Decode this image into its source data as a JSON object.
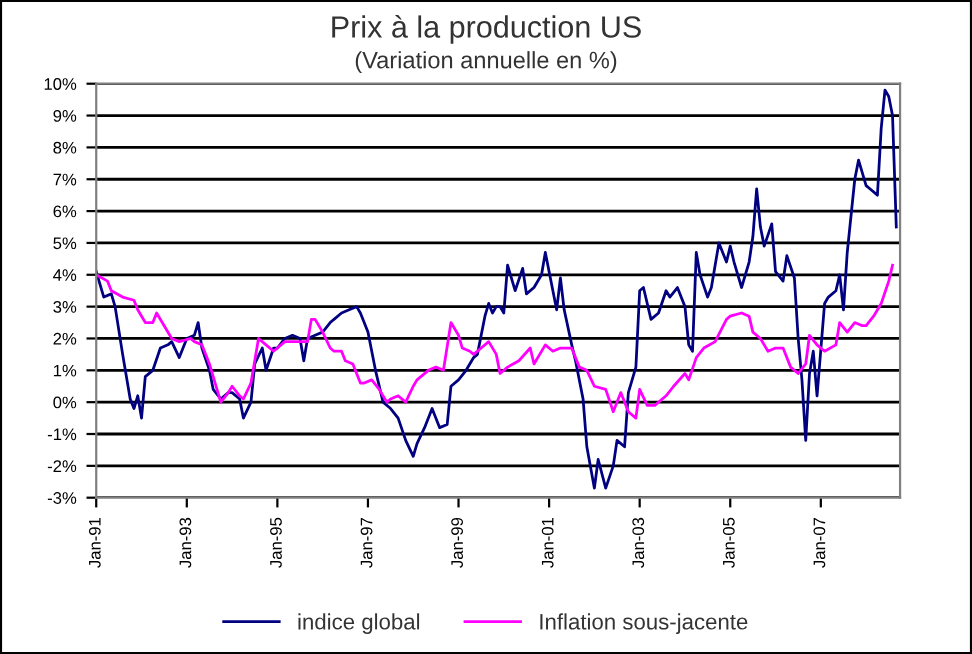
{
  "chart_data": {
    "type": "line",
    "title": "Prix à la production US",
    "subtitle": "(Variation annuelle en %)",
    "series": [
      {
        "name": "indice global",
        "color": "#000080",
        "x": [
          "1991-01",
          "1991-03",
          "1991-05",
          "1991-06",
          "1991-08",
          "1991-10",
          "1991-11",
          "1991-12",
          "1992-01",
          "1992-02",
          "1992-04",
          "1992-06",
          "1992-08",
          "1992-09",
          "1992-11",
          "1993-01",
          "1993-03",
          "1993-04",
          "1993-05",
          "1993-07",
          "1993-08",
          "1993-10",
          "1993-12",
          "1994-01",
          "1994-03",
          "1994-04",
          "1994-06",
          "1994-07",
          "1994-09",
          "1994-10",
          "1994-12",
          "1995-01",
          "1995-03",
          "1995-05",
          "1995-07",
          "1995-08",
          "1995-09",
          "1995-11",
          "1996-01",
          "1996-03",
          "1996-04",
          "1996-06",
          "1996-08",
          "1996-10",
          "1996-11",
          "1997-01",
          "1997-03",
          "1997-05",
          "1997-07",
          "1997-09",
          "1997-11",
          "1998-01",
          "1998-02",
          "1998-04",
          "1998-06",
          "1998-08",
          "1998-10",
          "1998-11",
          "1999-01",
          "1999-03",
          "1999-05",
          "1999-06",
          "1999-08",
          "1999-09",
          "1999-10",
          "1999-11",
          "1999-12",
          "2000-01",
          "2000-02",
          "2000-04",
          "2000-06",
          "2000-07",
          "2000-09",
          "2000-11",
          "2000-12",
          "2001-03",
          "2001-04",
          "2001-05",
          "2001-07",
          "2001-08",
          "2001-10",
          "2001-11",
          "2002-01",
          "2002-02",
          "2002-04",
          "2002-06",
          "2002-07",
          "2002-09",
          "2002-10",
          "2002-12",
          "2003-01",
          "2003-02",
          "2003-04",
          "2003-06",
          "2003-08",
          "2003-09",
          "2003-11",
          "2004-01",
          "2004-02",
          "2004-03",
          "2004-04",
          "2004-05",
          "2004-07",
          "2004-08",
          "2004-10",
          "2004-12",
          "2005-01",
          "2005-02",
          "2005-04",
          "2005-06",
          "2005-07",
          "2005-08",
          "2005-09",
          "2005-10",
          "2005-12",
          "2006-01",
          "2006-03",
          "2006-04",
          "2006-06",
          "2006-07",
          "2006-08",
          "2006-09",
          "2006-10",
          "2006-11",
          "2006-12",
          "2007-02",
          "2007-03",
          "2007-05",
          "2007-06",
          "2007-07",
          "2007-08",
          "2007-10",
          "2007-11",
          "2007-12",
          "2008-01",
          "2008-02",
          "2008-04",
          "2008-05",
          "2008-06",
          "2008-07",
          "2008-08",
          "2008-09"
        ],
        "values": [
          4.1,
          3.3,
          3.4,
          3.0,
          1.5,
          0.1,
          -0.2,
          0.2,
          -0.5,
          0.8,
          1.0,
          1.7,
          1.8,
          1.9,
          1.4,
          2.0,
          2.1,
          2.5,
          1.7,
          1.0,
          0.4,
          0.1,
          0.3,
          0.3,
          0.1,
          -0.5,
          0.0,
          1.2,
          1.7,
          1.0,
          1.7,
          1.7,
          2.0,
          2.1,
          2.0,
          1.3,
          2.0,
          2.1,
          2.2,
          2.5,
          2.6,
          2.8,
          2.9,
          3.0,
          2.8,
          2.2,
          1.0,
          0.0,
          -0.2,
          -0.5,
          -1.2,
          -1.7,
          -1.3,
          -0.8,
          -0.2,
          -0.8,
          -0.7,
          0.5,
          0.7,
          1.0,
          1.4,
          1.5,
          2.7,
          3.1,
          2.8,
          3.0,
          3.0,
          2.8,
          4.3,
          3.5,
          4.2,
          3.4,
          3.6,
          4.0,
          4.7,
          2.9,
          3.9,
          2.9,
          1.8,
          1.3,
          0.1,
          -1.4,
          -2.7,
          -1.8,
          -2.7,
          -2.0,
          -1.2,
          -1.4,
          0.3,
          1.1,
          3.5,
          3.6,
          2.6,
          2.8,
          3.5,
          3.3,
          3.6,
          3.0,
          1.8,
          1.6,
          4.7,
          4.0,
          3.3,
          3.6,
          5.0,
          4.4,
          4.9,
          4.4,
          3.6,
          4.4,
          5.2,
          6.7,
          5.5,
          4.9,
          5.6,
          4.1,
          3.8,
          4.6,
          3.9,
          2.0,
          0.7,
          -1.2,
          0.9,
          1.6,
          0.2,
          3.1,
          3.3,
          3.5,
          4.0,
          2.9,
          4.7,
          7.0,
          7.6,
          7.2,
          6.8,
          6.7,
          6.5,
          8.6,
          9.8,
          9.6,
          9.0,
          5.5
        ]
      },
      {
        "name": "Inflation sous-jacente",
        "color": "#ff00ff",
        "x": [
          "1991-01",
          "1991-04",
          "1991-05",
          "1991-08",
          "1991-11",
          "1991-12",
          "1992-02",
          "1992-04",
          "1992-05",
          "1992-07",
          "1992-09",
          "1992-11",
          "1993-02",
          "1993-03",
          "1993-05",
          "1993-07",
          "1993-09",
          "1993-10",
          "1993-12",
          "1994-01",
          "1994-03",
          "1994-04",
          "1994-06",
          "1994-08",
          "1994-10",
          "1994-12",
          "1995-01",
          "1995-03",
          "1995-05",
          "1995-07",
          "1995-09",
          "1995-10",
          "1995-11",
          "1996-01",
          "1996-03",
          "1996-04",
          "1996-06",
          "1996-07",
          "1996-09",
          "1996-11",
          "1996-12",
          "1997-02",
          "1997-04",
          "1997-06",
          "1997-07",
          "1997-09",
          "1997-11",
          "1998-01",
          "1998-02",
          "1998-05",
          "1998-07",
          "1998-09",
          "1998-11",
          "1999-01",
          "1999-02",
          "1999-04",
          "1999-05",
          "1999-07",
          "1999-09",
          "1999-11",
          "1999-12",
          "2000-02",
          "2000-05",
          "2000-08",
          "2000-09",
          "2000-12",
          "2001-02",
          "2001-04",
          "2001-07",
          "2001-09",
          "2001-11",
          "2002-01",
          "2002-04",
          "2002-06",
          "2002-08",
          "2002-10",
          "2002-12",
          "2003-01",
          "2003-03",
          "2003-05",
          "2003-08",
          "2003-10",
          "2004-01",
          "2004-02",
          "2004-04",
          "2004-06",
          "2004-09",
          "2004-12",
          "2005-01",
          "2005-04",
          "2005-06",
          "2005-07",
          "2005-09",
          "2005-11",
          "2006-01",
          "2006-03",
          "2006-05",
          "2006-07",
          "2006-09",
          "2006-10",
          "2006-12",
          "2007-02",
          "2007-05",
          "2007-06",
          "2007-08",
          "2007-10",
          "2007-12",
          "2008-01",
          "2008-03",
          "2008-05",
          "2008-07",
          "2008-08"
        ],
        "values": [
          4.0,
          3.8,
          3.5,
          3.3,
          3.2,
          2.9,
          2.5,
          2.5,
          2.8,
          2.4,
          2.0,
          1.9,
          2.0,
          1.9,
          1.8,
          1.2,
          0.4,
          0.0,
          0.3,
          0.5,
          0.2,
          0.1,
          0.6,
          2.0,
          1.8,
          1.6,
          1.7,
          1.9,
          1.9,
          1.9,
          1.9,
          2.6,
          2.6,
          2.2,
          1.7,
          1.6,
          1.6,
          1.3,
          1.2,
          0.6,
          0.6,
          0.7,
          0.4,
          0.0,
          0.1,
          0.2,
          0.0,
          0.5,
          0.7,
          1.0,
          1.1,
          1.0,
          2.5,
          2.1,
          1.7,
          1.6,
          1.5,
          1.7,
          1.9,
          1.5,
          0.9,
          1.1,
          1.3,
          1.7,
          1.2,
          1.8,
          1.6,
          1.7,
          1.7,
          1.1,
          1.0,
          0.5,
          0.4,
          -0.3,
          0.3,
          -0.3,
          -0.5,
          0.4,
          -0.1,
          -0.1,
          0.2,
          0.5,
          0.9,
          0.7,
          1.4,
          1.7,
          1.9,
          2.6,
          2.7,
          2.8,
          2.7,
          2.2,
          2.0,
          1.6,
          1.7,
          1.7,
          1.1,
          0.9,
          1.2,
          2.1,
          1.8,
          1.6,
          1.8,
          2.5,
          2.2,
          2.5,
          2.4,
          2.4,
          2.7,
          3.1,
          3.8,
          4.3
        ]
      }
    ],
    "xlim": [
      "1991-01",
      "2008-10"
    ],
    "xticks": [
      {
        "value": "1991-01",
        "label": "Jan-91"
      },
      {
        "value": "1993-01",
        "label": "Jan-93"
      },
      {
        "value": "1995-01",
        "label": "Jan-95"
      },
      {
        "value": "1997-01",
        "label": "Jan-97"
      },
      {
        "value": "1999-01",
        "label": "Jan-99"
      },
      {
        "value": "2001-01",
        "label": "Jan-01"
      },
      {
        "value": "2003-01",
        "label": "Jan-03"
      },
      {
        "value": "2005-01",
        "label": "Jan-05"
      },
      {
        "value": "2007-01",
        "label": "Jan-07"
      }
    ],
    "ylim": [
      -3,
      10
    ],
    "yticks": [
      {
        "value": -3,
        "label": "-3%"
      },
      {
        "value": -2,
        "label": "-2%"
      },
      {
        "value": -1,
        "label": "-1%"
      },
      {
        "value": 0,
        "label": "0%"
      },
      {
        "value": 1,
        "label": "1%"
      },
      {
        "value": 2,
        "label": "2%"
      },
      {
        "value": 3,
        "label": "3%"
      },
      {
        "value": 4,
        "label": "4%"
      },
      {
        "value": 5,
        "label": "5%"
      },
      {
        "value": 6,
        "label": "6%"
      },
      {
        "value": 7,
        "label": "7%"
      },
      {
        "value": 8,
        "label": "8%"
      },
      {
        "value": 9,
        "label": "9%"
      },
      {
        "value": 10,
        "label": "10%"
      }
    ],
    "grid": "y",
    "legend": "bottom",
    "marker": "none",
    "line_style": "solid"
  }
}
